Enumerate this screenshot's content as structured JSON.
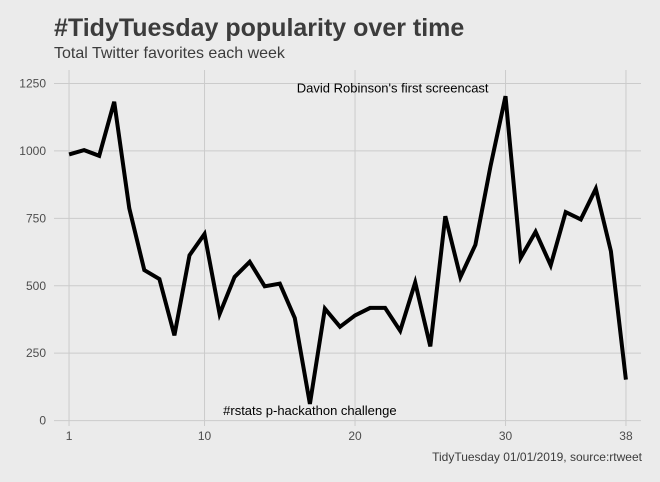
{
  "title": "#TidyTuesday popularity over time",
  "subtitle": "Total Twitter favorites each week",
  "caption": "TidyTuesday 01/01/2019, source:rtweet",
  "chart_data": {
    "type": "line",
    "x": [
      1,
      2,
      3,
      4,
      5,
      6,
      7,
      8,
      9,
      10,
      11,
      12,
      13,
      14,
      15,
      16,
      17,
      18,
      19,
      20,
      21,
      22,
      23,
      24,
      25,
      26,
      27,
      28,
      29,
      30,
      31,
      32,
      33,
      34,
      35,
      36,
      37,
      38
    ],
    "series": [
      {
        "values": [
          987,
          1003,
          982,
          1182,
          787,
          558,
          525,
          316,
          613,
          692,
          395,
          533,
          589,
          498,
          508,
          380,
          62,
          415,
          348,
          390,
          418,
          418,
          333,
          512,
          275,
          758,
          532,
          652,
          943,
          1203,
          603,
          700,
          576,
          773,
          746,
          860,
          628,
          152
        ]
      }
    ],
    "xticks": [
      1,
      10,
      20,
      30,
      38
    ],
    "yticks": [
      0,
      250,
      500,
      750,
      1000,
      1250
    ],
    "xlim": [
      0,
      39
    ],
    "ylim": [
      -20,
      1300
    ],
    "grid": true,
    "line_color": "#000000",
    "annotations": [
      {
        "x": 22.5,
        "y": 1235,
        "text": "David Robinson's first screencast"
      },
      {
        "x": 17,
        "y": 40,
        "text": "#rstats p-hackathon challenge"
      }
    ]
  }
}
